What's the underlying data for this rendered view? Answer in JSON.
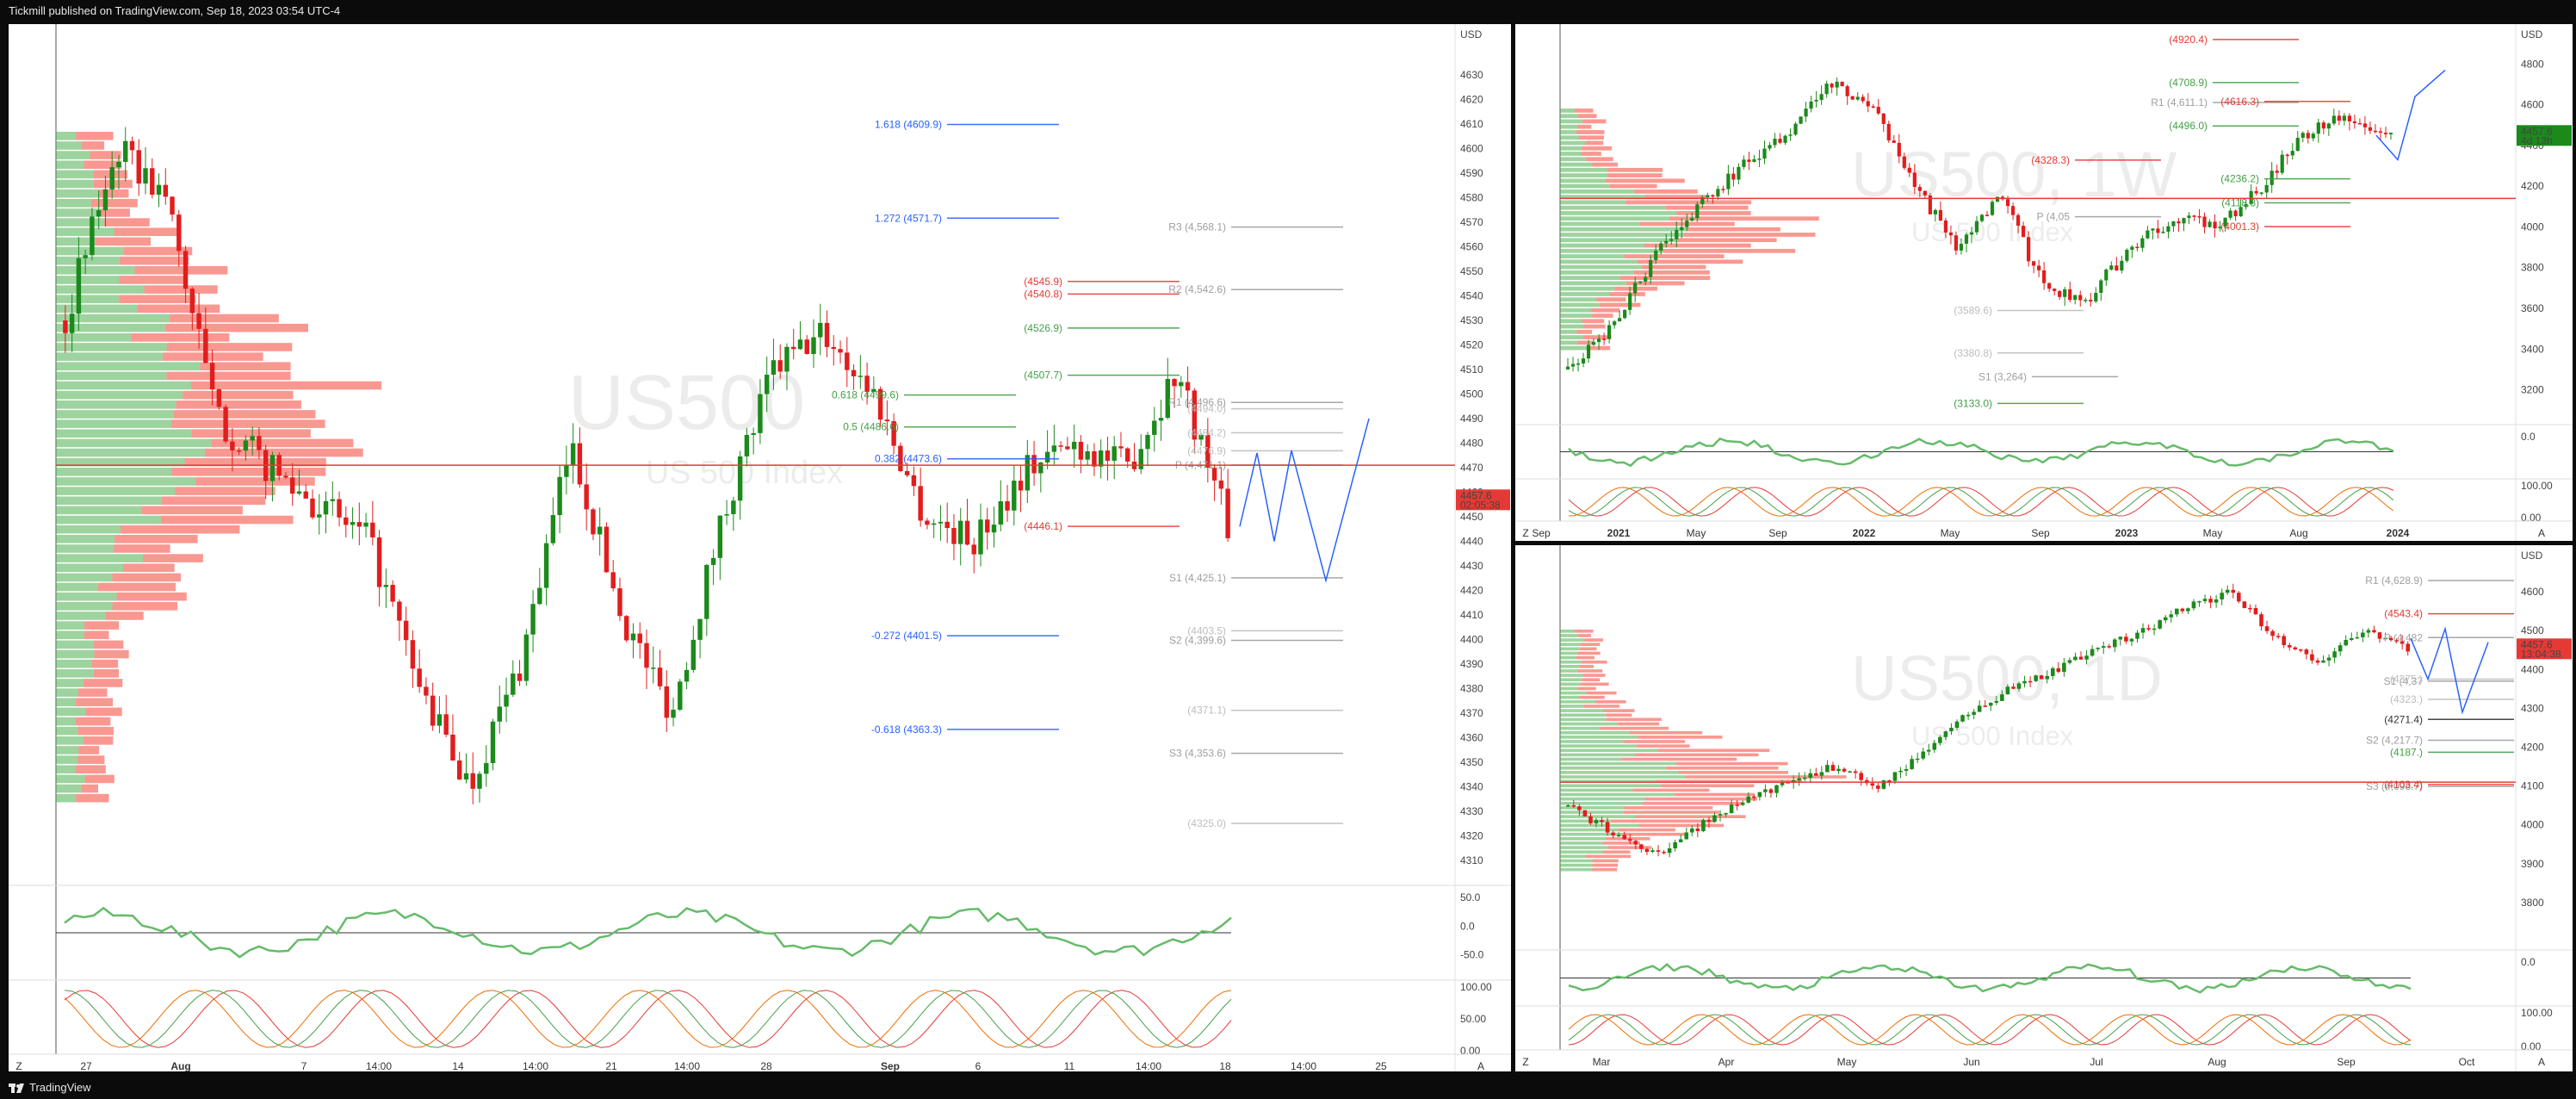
{
  "header": {
    "caption": "Tickmill published on TradingView.com, Sep 18, 2023 03:54 UTC-4"
  },
  "footer": {
    "brand": "TradingView"
  },
  "currency": "USD",
  "chart_data": [
    {
      "id": "left",
      "type": "candlestick",
      "watermark": "US500",
      "watermark_sub": "US 500 Index",
      "ylim": [
        4305,
        4635
      ],
      "y_ticks": [
        4310,
        4320,
        4330,
        4340,
        4350,
        4360,
        4370,
        4380,
        4390,
        4400,
        4410,
        4420,
        4430,
        4440,
        4450,
        4460,
        4470,
        4480,
        4490,
        4500,
        4510,
        4520,
        4530,
        4540,
        4550,
        4560,
        4570,
        4580,
        4590,
        4600,
        4610,
        4620,
        4630
      ],
      "x_labels": [
        "27",
        "Aug",
        "7",
        "14:00",
        "14",
        "14:00",
        "21",
        "14:00",
        "28",
        "Sep",
        "6",
        "11",
        "14:00",
        "18",
        "14:00",
        "25"
      ],
      "bold_x_labels": [
        "Aug",
        "Sep"
      ],
      "price_tag": {
        "value": "4457.6",
        "sub": "02:05:38"
      },
      "levels": [
        {
          "label": "1.618 (4609.9)",
          "value": 4609.9,
          "color": "#2962ff"
        },
        {
          "label": "1.272 (4571.7)",
          "value": 4571.7,
          "color": "#2962ff"
        },
        {
          "label": "0.618 (4499.6)",
          "value": 4499.6,
          "color": "#43a047"
        },
        {
          "label": "0.5 (4486.6)",
          "value": 4486.6,
          "color": "#43a047"
        },
        {
          "label": "0.382 (4473.6)",
          "value": 4473.6,
          "color": "#2962ff"
        },
        {
          "label": "-0.272 (4401.5)",
          "value": 4401.5,
          "color": "#2962ff"
        },
        {
          "label": "-0.618 (4363.3)",
          "value": 4363.3,
          "color": "#2962ff"
        },
        {
          "label": "(4545.9)",
          "value": 4545.9,
          "color": "#e53935"
        },
        {
          "label": "(4540.8)",
          "value": 4540.8,
          "color": "#e53935"
        },
        {
          "label": "(4526.9)",
          "value": 4526.9,
          "color": "#43a047"
        },
        {
          "label": "(4507.7)",
          "value": 4507.7,
          "color": "#43a047"
        },
        {
          "label": "(4446.1)",
          "value": 4446.1,
          "color": "#e53935"
        },
        {
          "label": "R3 (4,568.1)",
          "value": 4568.1,
          "color": "#9e9e9e"
        },
        {
          "label": "R2 (4,542.6)",
          "value": 4542.6,
          "color": "#9e9e9e"
        },
        {
          "label": "R1 (4,496.6)",
          "value": 4496.6,
          "color": "#9e9e9e"
        },
        {
          "label": "(4494.0)",
          "value": 4494.0,
          "color": "#bdbdbd"
        },
        {
          "label": "(4484.2)",
          "value": 4484.2,
          "color": "#bdbdbd"
        },
        {
          "label": "(4476.9)",
          "value": 4476.9,
          "color": "#bdbdbd"
        },
        {
          "label": "P (4,471.1)",
          "value": 4471.1,
          "color": "#9e9e9e"
        },
        {
          "label": "S1 (4,425.1)",
          "value": 4425.1,
          "color": "#9e9e9e"
        },
        {
          "label": "(4403.5)",
          "value": 4403.5,
          "color": "#bdbdbd"
        },
        {
          "label": "S2 (4,399.6)",
          "value": 4399.6,
          "color": "#9e9e9e"
        },
        {
          "label": "(4371.1)",
          "value": 4371.1,
          "color": "#bdbdbd"
        },
        {
          "label": "S3 (4,353.6)",
          "value": 4353.6,
          "color": "#9e9e9e"
        },
        {
          "label": "(4325.0)",
          "value": 4325.0,
          "color": "#bdbdbd"
        }
      ],
      "osc1_labels": [
        "50.0",
        "0.0",
        "-50.0"
      ],
      "osc2_labels": [
        "100.00",
        "50.00",
        "0.00"
      ]
    },
    {
      "id": "top-right",
      "type": "candlestick",
      "watermark": "US500, 1W",
      "watermark_sub": "US 500 Index",
      "ylim": [
        3050,
        4920
      ],
      "y_ticks": [
        3200,
        3400,
        3600,
        3800,
        4000,
        4200,
        4400,
        4600,
        4800
      ],
      "x_labels": [
        "Sep",
        "2021",
        "May",
        "Sep",
        "2022",
        "May",
        "Sep",
        "2023",
        "May",
        "Aug",
        "2024"
      ],
      "bold_x_labels": [
        "2021",
        "2022",
        "2023",
        "2024"
      ],
      "price_tag": {
        "value": "4457.6",
        "sub": "4d 13h"
      },
      "levels": [
        {
          "label": "(4920.4)",
          "value": 4920.4,
          "color": "#e53935"
        },
        {
          "label": "(4708.9)",
          "value": 4708.9,
          "color": "#43a047"
        },
        {
          "label": "R1 (4,611.1)",
          "value": 4611.1,
          "color": "#9e9e9e"
        },
        {
          "label": "(4616.3)",
          "value": 4616.3,
          "color": "#e53935"
        },
        {
          "label": "(4496.0)",
          "value": 4496.0,
          "color": "#43a047"
        },
        {
          "label": "(4236.2)",
          "value": 4236.2,
          "color": "#43a047"
        },
        {
          "label": "(4118.3)",
          "value": 4118.3,
          "color": "#43a047"
        },
        {
          "label": "(4001.3)",
          "value": 4001.3,
          "color": "#e53935"
        },
        {
          "label": "(4328.3)",
          "value": 4328.3,
          "color": "#e53935"
        },
        {
          "label": "P (4,05",
          "value": 4050,
          "color": "#9e9e9e"
        },
        {
          "label": "(3589.6)",
          "value": 3589.6,
          "color": "#bdbdbd"
        },
        {
          "label": "(3380.8)",
          "value": 3380.8,
          "color": "#bdbdbd"
        },
        {
          "label": "S1 (3,264)",
          "value": 3264,
          "color": "#9e9e9e"
        },
        {
          "label": "(3133.0)",
          "value": 3133.0,
          "color": "#43a047"
        }
      ],
      "osc1_labels": [
        "0.0"
      ],
      "osc2_labels": [
        "100.00",
        "0.00"
      ]
    },
    {
      "id": "bottom-right",
      "type": "candlestick",
      "watermark": "US500, 1D",
      "watermark_sub": "US 500 Index",
      "ylim": [
        3700,
        4680
      ],
      "y_ticks": [
        3800,
        3900,
        4000,
        4100,
        4200,
        4300,
        4400,
        4500,
        4600
      ],
      "x_labels": [
        "Mar",
        "Apr",
        "May",
        "Jun",
        "Jul",
        "Aug",
        "Sep",
        "Oct"
      ],
      "bold_x_labels": [],
      "price_tag": {
        "value": "4457.6",
        "sub": "13:04:38"
      },
      "levels": [
        {
          "label": "R1 (4,628.9)",
          "value": 4628.9,
          "color": "#9e9e9e"
        },
        {
          "label": "(4543.4)",
          "value": 4543.4,
          "color": "#e53935"
        },
        {
          "label": "P (4,482",
          "value": 4482,
          "color": "#9e9e9e"
        },
        {
          "label": "S1 (4,37",
          "value": 4370,
          "color": "#9e9e9e"
        },
        {
          "label": "(4375.)",
          "value": 4375,
          "color": "#bdbdbd"
        },
        {
          "label": "(4323.)",
          "value": 4323,
          "color": "#bdbdbd"
        },
        {
          "label": "(4271.4)",
          "value": 4271.4,
          "color": "#333"
        },
        {
          "label": "S2 (4,217.7)",
          "value": 4217.7,
          "color": "#9e9e9e"
        },
        {
          "label": "(4187.)",
          "value": 4187,
          "color": "#43a047"
        },
        {
          "label": "S3 (4,098.7)",
          "value": 4098.7,
          "color": "#9e9e9e"
        },
        {
          "label": "(4103.4)",
          "value": 4103.4,
          "color": "#e53935"
        }
      ],
      "osc1_labels": [
        "0.0"
      ],
      "osc2_labels": [
        "100.00",
        "0.00"
      ]
    }
  ]
}
